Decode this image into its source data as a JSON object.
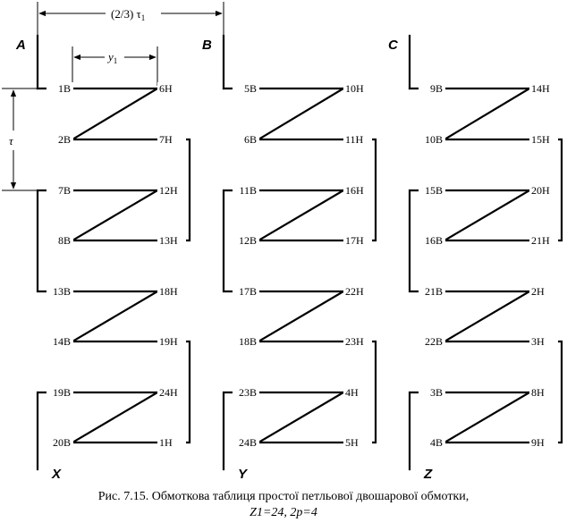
{
  "dimensions": {
    "pitch_label": "(2/3) τ",
    "pitch_sub": "1",
    "y_label": "y",
    "y_sub": "1",
    "tau_label": "τ"
  },
  "columns": [
    {
      "start": "A",
      "end": "X",
      "rows": [
        {
          "left": "1B",
          "right": "6H"
        },
        {
          "left": "2B",
          "right": "7H"
        },
        {
          "left": "7B",
          "right": "12H"
        },
        {
          "left": "8B",
          "right": "13H"
        },
        {
          "left": "13B",
          "right": "18H"
        },
        {
          "left": "14B",
          "right": "19H"
        },
        {
          "left": "19B",
          "right": "24H"
        },
        {
          "left": "20B",
          "right": "1H"
        }
      ]
    },
    {
      "start": "B",
      "end": "Y",
      "rows": [
        {
          "left": "5B",
          "right": "10H"
        },
        {
          "left": "6B",
          "right": "11H"
        },
        {
          "left": "11B",
          "right": "16H"
        },
        {
          "left": "12B",
          "right": "17H"
        },
        {
          "left": "17B",
          "right": "22H"
        },
        {
          "left": "18B",
          "right": "23H"
        },
        {
          "left": "23B",
          "right": "4H"
        },
        {
          "left": "24B",
          "right": "5H"
        }
      ]
    },
    {
      "start": "C",
      "end": "Z",
      "rows": [
        {
          "left": "9B",
          "right": "14H"
        },
        {
          "left": "10B",
          "right": "15H"
        },
        {
          "left": "15B",
          "right": "20H"
        },
        {
          "left": "16B",
          "right": "21H"
        },
        {
          "left": "21B",
          "right": "2H"
        },
        {
          "left": "22B",
          "right": "3H"
        },
        {
          "left": "3B",
          "right": "8H"
        },
        {
          "left": "4B",
          "right": "9H"
        }
      ]
    }
  ],
  "caption": {
    "line1": "Рис. 7.15.  Обмоткова таблиця простої петльової двошарової обмотки,",
    "line2": "Z1=24, 2p=4"
  }
}
